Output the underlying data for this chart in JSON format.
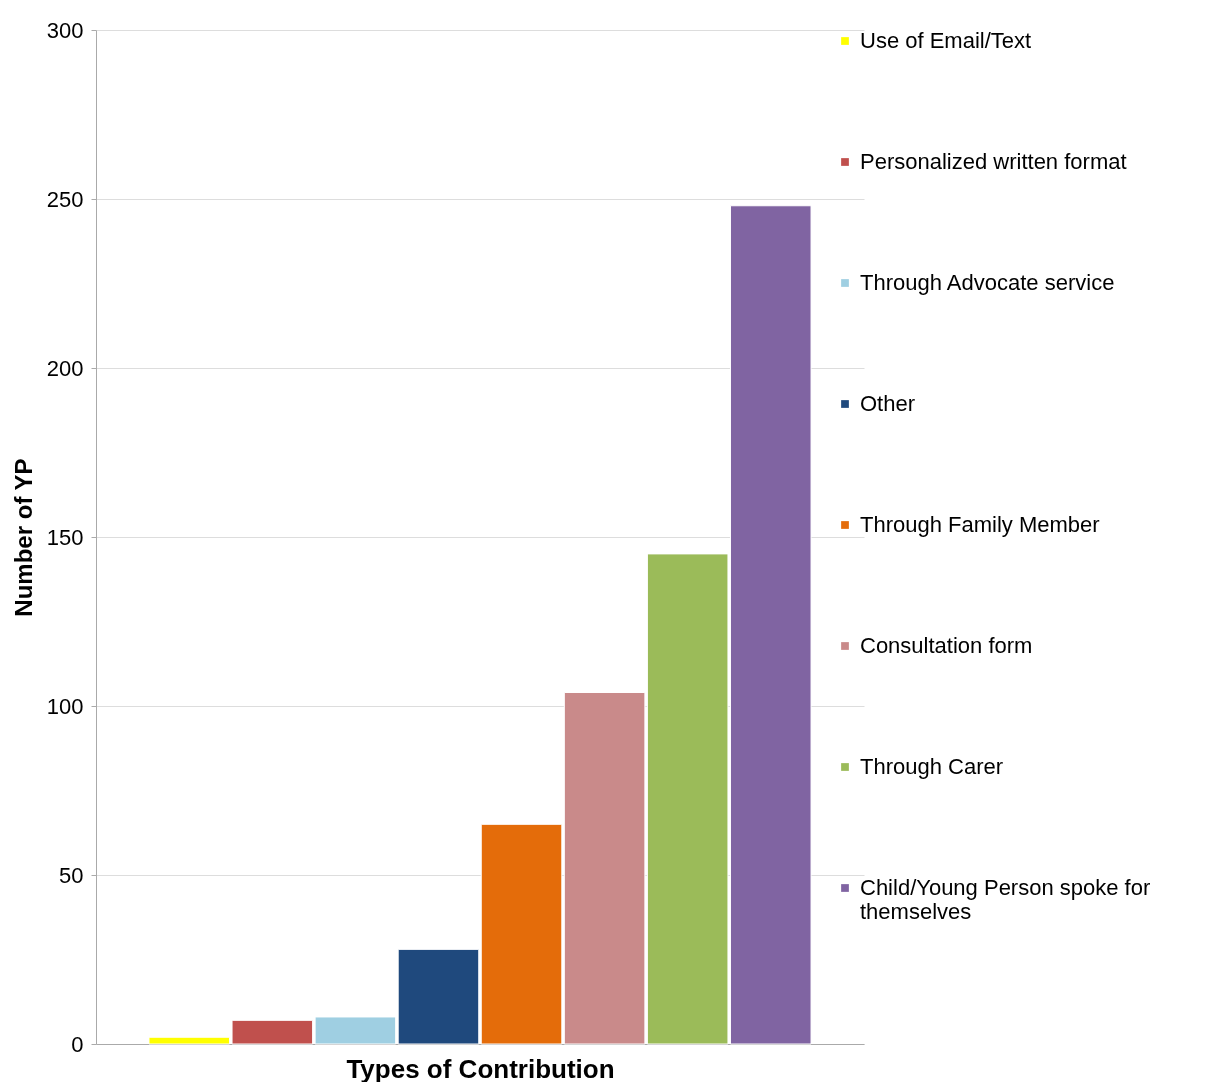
{
  "chart_data": {
    "type": "bar",
    "xlabel": "Types of Contribution",
    "ylabel": "Number of YP",
    "categories": [
      null
    ],
    "series": [
      {
        "name": "Use of Email/Text",
        "color": "#ffff00",
        "values": [
          2
        ]
      },
      {
        "name": "Personalized written format",
        "color": "#c0504d",
        "values": [
          7
        ]
      },
      {
        "name": "Through Advocate service",
        "color": "#9fcfe2",
        "values": [
          8
        ]
      },
      {
        "name": "Other",
        "color": "#1f497d",
        "values": [
          28
        ]
      },
      {
        "name": "Through Family Member",
        "color": "#e46c0a",
        "values": [
          65
        ]
      },
      {
        "name": "Consultation form",
        "color": "#c98a8a",
        "values": [
          104
        ]
      },
      {
        "name": "Through Carer",
        "color": "#9bbb59",
        "values": [
          145
        ]
      },
      {
        "name": "Child/Young Person spoke for themselves",
        "color": "#8064a2",
        "values": [
          248
        ]
      }
    ],
    "ylim": [
      0,
      300
    ],
    "yticks": [
      0,
      50,
      100,
      150,
      200,
      250,
      300
    ],
    "grid": "y",
    "legend": "right"
  }
}
